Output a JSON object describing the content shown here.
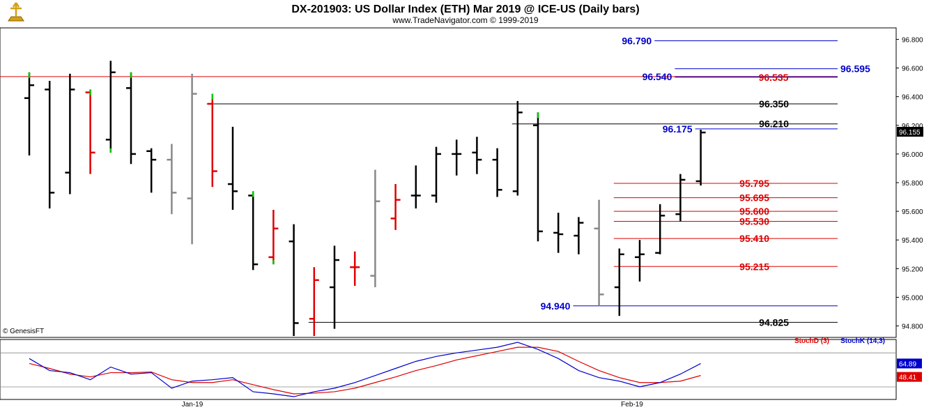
{
  "chart_data": {
    "type": "ohlc_bar",
    "title": "DX-201903:  US Dollar Index (ETH) Mar 2019 @ ICE-US  (Daily bars)",
    "subtitle": "www.TradeNavigator.com © 1999-2019",
    "watermark": "© GenesisFT",
    "price_axis": {
      "range": [
        94.72,
        96.88
      ],
      "ticks": [
        "94.800",
        "95.000",
        "95.200",
        "95.400",
        "95.600",
        "95.800",
        "96.000",
        "96.200",
        "96.400",
        "96.600",
        "96.800"
      ],
      "last_price_label": "96.155"
    },
    "x_axis_labels": [
      "Jan-19",
      "Feb-19"
    ],
    "colors": {
      "up": "#000000",
      "down_red": "#e00000",
      "neutral_grey": "#888888",
      "highlight_green": "#00cc00",
      "blue_level": "#0000cc",
      "red_level": "#dd0000",
      "black_level": "#000000"
    },
    "bars": [
      {
        "h": 96.57,
        "l": 95.99,
        "o": 96.39,
        "c": 96.48,
        "color": "black",
        "accent": "high"
      },
      {
        "h": 96.51,
        "l": 95.62,
        "o": 96.45,
        "c": 95.73,
        "color": "black"
      },
      {
        "h": 96.56,
        "l": 95.72,
        "o": 95.87,
        "c": 96.45,
        "color": "black"
      },
      {
        "h": 96.45,
        "l": 95.86,
        "o": 96.43,
        "c": 96.01,
        "color": "red",
        "accent": "high"
      },
      {
        "h": 96.65,
        "l": 96.01,
        "o": 96.1,
        "c": 96.57,
        "color": "black",
        "accent": "low"
      },
      {
        "h": 96.57,
        "l": 95.93,
        "o": 96.46,
        "c": 96.0,
        "color": "black",
        "accent": "high"
      },
      {
        "h": 96.04,
        "l": 95.73,
        "o": 96.02,
        "c": 95.96,
        "color": "black"
      },
      {
        "h": 96.07,
        "l": 95.58,
        "o": 95.96,
        "c": 95.73,
        "color": "grey"
      },
      {
        "h": 96.56,
        "l": 95.37,
        "o": 95.69,
        "c": 96.42,
        "color": "grey"
      },
      {
        "h": 96.42,
        "l": 95.77,
        "o": 96.35,
        "c": 95.88,
        "color": "red",
        "accent": "high"
      },
      {
        "h": 96.19,
        "l": 95.61,
        "o": 95.79,
        "c": 95.74,
        "color": "black"
      },
      {
        "h": 95.74,
        "l": 95.19,
        "o": 95.71,
        "c": 95.23,
        "color": "black",
        "accent": "high"
      },
      {
        "h": 95.61,
        "l": 95.23,
        "o": 95.28,
        "c": 95.48,
        "color": "red",
        "accent": "low"
      },
      {
        "h": 95.51,
        "l": 94.73,
        "o": 95.39,
        "c": 94.82,
        "color": "black"
      },
      {
        "h": 95.21,
        "l": 94.73,
        "o": 94.85,
        "c": 95.12,
        "color": "red"
      },
      {
        "h": 95.36,
        "l": 94.78,
        "o": 95.07,
        "c": 95.26,
        "color": "black"
      },
      {
        "h": 95.32,
        "l": 95.08,
        "o": 95.21,
        "c": 95.21,
        "color": "red"
      },
      {
        "h": 95.89,
        "l": 95.07,
        "o": 95.15,
        "c": 95.67,
        "color": "grey"
      },
      {
        "h": 95.79,
        "l": 95.47,
        "o": 95.55,
        "c": 95.68,
        "color": "red"
      },
      {
        "h": 95.92,
        "l": 95.62,
        "o": 95.71,
        "c": 95.71,
        "color": "black"
      },
      {
        "h": 96.05,
        "l": 95.66,
        "o": 95.71,
        "c": 96.0,
        "color": "black"
      },
      {
        "h": 96.1,
        "l": 95.85,
        "o": 96.0,
        "c": 96.0,
        "color": "black"
      },
      {
        "h": 96.12,
        "l": 95.86,
        "o": 96.01,
        "c": 95.96,
        "color": "black"
      },
      {
        "h": 96.04,
        "l": 95.7,
        "o": 95.96,
        "c": 95.75,
        "color": "black"
      },
      {
        "h": 96.37,
        "l": 95.71,
        "o": 95.74,
        "c": 96.29,
        "color": "black"
      },
      {
        "h": 96.29,
        "l": 95.39,
        "o": 96.2,
        "c": 95.46,
        "color": "black",
        "accent": "high"
      },
      {
        "h": 95.59,
        "l": 95.31,
        "o": 95.45,
        "c": 95.44,
        "color": "black"
      },
      {
        "h": 95.56,
        "l": 95.3,
        "o": 95.43,
        "c": 95.52,
        "color": "black"
      },
      {
        "h": 95.68,
        "l": 94.94,
        "o": 95.48,
        "c": 95.02,
        "color": "grey"
      },
      {
        "h": 95.34,
        "l": 94.87,
        "o": 95.07,
        "c": 95.3,
        "color": "black"
      },
      {
        "h": 95.4,
        "l": 95.11,
        "o": 95.28,
        "c": 95.3,
        "color": "black"
      },
      {
        "h": 95.65,
        "l": 95.3,
        "o": 95.31,
        "c": 95.57,
        "color": "black"
      },
      {
        "h": 95.86,
        "l": 95.53,
        "o": 95.58,
        "c": 95.82,
        "color": "black"
      },
      {
        "h": 96.17,
        "l": 95.78,
        "o": 95.81,
        "c": 96.15,
        "color": "black"
      }
    ],
    "levels": [
      {
        "label": "96.790",
        "value": 96.79,
        "color": "blue",
        "from_bar": 31,
        "label_side": "left"
      },
      {
        "label": "96.595",
        "value": 96.595,
        "color": "blue",
        "from_bar": 32,
        "label_side": "right"
      },
      {
        "label": "96.540",
        "value": 96.54,
        "color": "blue",
        "from_bar": 32,
        "label_side": "left"
      },
      {
        "label": "96.535",
        "value": 96.535,
        "color": "red",
        "from_bar": 32,
        "label_side": "mid"
      },
      {
        "label": "96.350",
        "value": 96.35,
        "color": "black",
        "from_bar": 9,
        "label_side": "right"
      },
      {
        "label": "96.210",
        "value": 96.21,
        "color": "black",
        "from_bar": 24,
        "label_side": "right"
      },
      {
        "label": "96.175",
        "value": 96.175,
        "color": "blue",
        "from_bar": 33,
        "label_side": "left"
      },
      {
        "label": "95.795",
        "value": 95.795,
        "color": "red",
        "from_bar": 29,
        "label_side": "right"
      },
      {
        "label": "95.695",
        "value": 95.695,
        "color": "red",
        "from_bar": 29,
        "label_side": "right"
      },
      {
        "label": "95.600",
        "value": 95.6,
        "color": "red",
        "from_bar": 29,
        "label_side": "right"
      },
      {
        "label": "95.530",
        "value": 95.53,
        "color": "red",
        "from_bar": 29,
        "label_side": "right"
      },
      {
        "label": "95.410",
        "value": 95.41,
        "color": "red",
        "from_bar": 29,
        "label_side": "right"
      },
      {
        "label": "95.215",
        "value": 95.215,
        "color": "red",
        "from_bar": 29,
        "label_side": "right"
      },
      {
        "label": "94.940",
        "value": 94.94,
        "color": "blue",
        "from_bar": 27,
        "label_side": "left"
      },
      {
        "label": "94.825",
        "value": 94.825,
        "color": "black",
        "from_bar": 14,
        "label_side": "right"
      }
    ],
    "horizontal_line": {
      "value": 96.54,
      "color": "red"
    },
    "stochastic": {
      "legend_d": "StochD (3)",
      "legend_k": "StochK (14,3)",
      "value_k_label": "64.89",
      "value_d_label": "48.41",
      "k": [
        72,
        55,
        52,
        42,
        60,
        50,
        52,
        30,
        40,
        42,
        45,
        25,
        22,
        18,
        25,
        30,
        38,
        48,
        58,
        68,
        75,
        80,
        84,
        88,
        95,
        85,
        72,
        55,
        45,
        40,
        32,
        38,
        50,
        65
      ],
      "d": [
        65,
        58,
        50,
        46,
        52,
        52,
        53,
        42,
        38,
        38,
        42,
        35,
        28,
        22,
        23,
        25,
        30,
        38,
        46,
        55,
        62,
        70,
        76,
        82,
        88,
        88,
        82,
        68,
        55,
        45,
        38,
        38,
        40,
        48
      ]
    }
  }
}
